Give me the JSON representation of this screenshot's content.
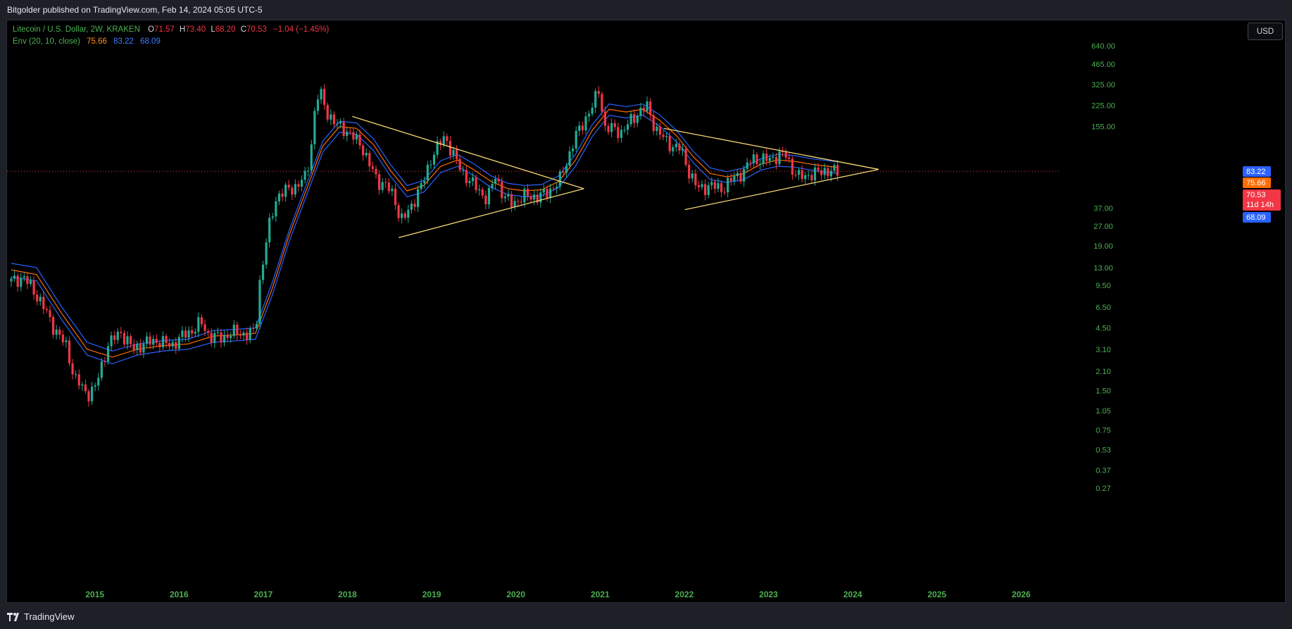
{
  "header": {
    "published": "Bitgolder published on TradingView.com, Feb 14, 2024 05:05 UTC-5"
  },
  "footer": {
    "brand": "TradingView"
  },
  "currency_button": "USD",
  "legend": {
    "symbol": "Litecoin / U.S. Dollar, 2W, KRAKEN",
    "open_label": "O",
    "open": "71.57",
    "high_label": "H",
    "high": "73.40",
    "low_label": "L",
    "low": "68.20",
    "close_label": "C",
    "close": "70.53",
    "change": "−1.04 (−1.45%)",
    "indicator": "Env (20, 10, close)",
    "ind_basis": "75.66",
    "ind_upper": "83.22",
    "ind_lower": "68.09"
  },
  "colors": {
    "up": "#22ab94",
    "down": "#f23645",
    "upper_band": "#2962ff",
    "basis": "#ff6d00",
    "lower_band": "#2962ff",
    "trendline": "#f7d774",
    "price_line": "#f23645",
    "axis_text": "#4caf50"
  },
  "chart_data": {
    "type": "candlestick",
    "title": "Litecoin / U.S. Dollar, 2W, KRAKEN",
    "y_scale": "log",
    "y_ticks": [
      640.0,
      465.0,
      325.0,
      225.0,
      155.0,
      37.0,
      27.0,
      19.0,
      13.0,
      9.5,
      6.5,
      4.5,
      3.1,
      2.1,
      1.5,
      1.05,
      0.75,
      0.53,
      0.37,
      0.27
    ],
    "y_ticks_labels": [
      "640.00",
      "465.00",
      "325.00",
      "225.00",
      "155.00",
      "37.00",
      "27.00",
      "19.00",
      "13.00",
      "9.50",
      "6.50",
      "4.50",
      "3.10",
      "2.10",
      "1.50",
      "1.05",
      "0.75",
      "0.53",
      "0.37",
      "0.27"
    ],
    "x_ticks": [
      "2015",
      "2016",
      "2017",
      "2018",
      "2019",
      "2020",
      "2021",
      "2022",
      "2023",
      "2024",
      "2025",
      "2026"
    ],
    "x_tick_values": [
      2015,
      2016,
      2017,
      2018,
      2019,
      2020,
      2021,
      2022,
      2023,
      2024,
      2025,
      2026
    ],
    "price_badges": [
      {
        "label": "83.22",
        "value": 83.22,
        "color": "#2962ff"
      },
      {
        "label": "75.66",
        "value": 75.66,
        "color": "#ff6d00"
      },
      {
        "label": "70.53",
        "sub": "11d 14h",
        "value": 70.53,
        "color": "#f23645"
      },
      {
        "label": "68.09",
        "value": 68.09,
        "color": "#2962ff"
      }
    ],
    "current_price": 70.53,
    "close_path": [
      [
        2014.3,
        10.2
      ],
      [
        2014.45,
        11.0
      ],
      [
        2014.65,
        7.2
      ],
      [
        2014.8,
        4.6
      ],
      [
        2014.95,
        3.3
      ],
      [
        2015.05,
        1.9
      ],
      [
        2015.2,
        1.4
      ],
      [
        2015.3,
        1.6
      ],
      [
        2015.45,
        3.4
      ],
      [
        2015.6,
        4.2
      ],
      [
        2015.75,
        3.1
      ],
      [
        2015.9,
        3.5
      ],
      [
        2016.05,
        3.6
      ],
      [
        2016.2,
        3.3
      ],
      [
        2016.35,
        4.0
      ],
      [
        2016.45,
        4.3
      ],
      [
        2016.55,
        5.0
      ],
      [
        2016.65,
        3.9
      ],
      [
        2016.8,
        3.8
      ],
      [
        2016.95,
        4.2
      ],
      [
        2017.1,
        4.0
      ],
      [
        2017.2,
        4.3
      ],
      [
        2017.25,
        10.0
      ],
      [
        2017.35,
        25.0
      ],
      [
        2017.45,
        45.0
      ],
      [
        2017.55,
        50.0
      ],
      [
        2017.7,
        55.0
      ],
      [
        2017.8,
        65.0
      ],
      [
        2017.85,
        95.0
      ],
      [
        2017.92,
        250.0
      ],
      [
        2017.97,
        280.0
      ],
      [
        2018.05,
        200.0
      ],
      [
        2018.15,
        160.0
      ],
      [
        2018.25,
        150.0
      ],
      [
        2018.35,
        130.0
      ],
      [
        2018.45,
        115.0
      ],
      [
        2018.55,
        80.0
      ],
      [
        2018.65,
        60.0
      ],
      [
        2018.75,
        55.0
      ],
      [
        2018.85,
        45.0
      ],
      [
        2018.92,
        30.0
      ],
      [
        2019.0,
        33.0
      ],
      [
        2019.1,
        45.0
      ],
      [
        2019.2,
        60.0
      ],
      [
        2019.3,
        95.0
      ],
      [
        2019.45,
        130.0
      ],
      [
        2019.55,
        95.0
      ],
      [
        2019.65,
        70.0
      ],
      [
        2019.8,
        55.0
      ],
      [
        2019.95,
        43.0
      ],
      [
        2020.05,
        65.0
      ],
      [
        2020.15,
        45.0
      ],
      [
        2020.25,
        40.0
      ],
      [
        2020.4,
        46.0
      ],
      [
        2020.55,
        45.0
      ],
      [
        2020.65,
        48.0
      ],
      [
        2020.8,
        58.0
      ],
      [
        2020.9,
        85.0
      ],
      [
        2021.0,
        130.0
      ],
      [
        2021.1,
        170.0
      ],
      [
        2021.2,
        220.0
      ],
      [
        2021.28,
        300.0
      ],
      [
        2021.35,
        150.0
      ],
      [
        2021.45,
        150.0
      ],
      [
        2021.55,
        140.0
      ],
      [
        2021.65,
        170.0
      ],
      [
        2021.75,
        200.0
      ],
      [
        2021.85,
        220.0
      ],
      [
        2021.95,
        150.0
      ],
      [
        2022.05,
        125.0
      ],
      [
        2022.15,
        110.0
      ],
      [
        2022.25,
        105.0
      ],
      [
        2022.35,
        70.0
      ],
      [
        2022.45,
        52.0
      ],
      [
        2022.6,
        55.0
      ],
      [
        2022.75,
        52.0
      ],
      [
        2022.9,
        65.0
      ],
      [
        2023.0,
        70.0
      ],
      [
        2023.1,
        90.0
      ],
      [
        2023.2,
        85.0
      ],
      [
        2023.3,
        88.0
      ],
      [
        2023.4,
        92.0
      ],
      [
        2023.5,
        95.0
      ],
      [
        2023.58,
        72.0
      ],
      [
        2023.65,
        64.0
      ],
      [
        2023.75,
        66.0
      ],
      [
        2023.85,
        68.0
      ],
      [
        2023.95,
        72.0
      ],
      [
        2024.05,
        70.0
      ],
      [
        2024.12,
        70.53
      ]
    ],
    "series": [
      {
        "name": "Env upper",
        "values": [
          [
            2014.3,
            14
          ],
          [
            2014.6,
            13
          ],
          [
            2014.9,
            6.5
          ],
          [
            2015.2,
            3.5
          ],
          [
            2015.5,
            3.0
          ],
          [
            2015.8,
            3.4
          ],
          [
            2016.1,
            3.6
          ],
          [
            2016.4,
            3.7
          ],
          [
            2016.7,
            4.3
          ],
          [
            2017.0,
            4.4
          ],
          [
            2017.2,
            4.5
          ],
          [
            2017.4,
            10
          ],
          [
            2017.6,
            25
          ],
          [
            2017.8,
            55
          ],
          [
            2018.0,
            120
          ],
          [
            2018.2,
            170
          ],
          [
            2018.4,
            165
          ],
          [
            2018.6,
            125
          ],
          [
            2018.8,
            80
          ],
          [
            2019.0,
            55
          ],
          [
            2019.2,
            60
          ],
          [
            2019.4,
            85
          ],
          [
            2019.6,
            95
          ],
          [
            2019.8,
            80
          ],
          [
            2020.0,
            65
          ],
          [
            2020.2,
            57
          ],
          [
            2020.4,
            55
          ],
          [
            2020.6,
            56
          ],
          [
            2020.8,
            65
          ],
          [
            2021.0,
            95
          ],
          [
            2021.2,
            160
          ],
          [
            2021.4,
            230
          ],
          [
            2021.6,
            220
          ],
          [
            2021.8,
            230
          ],
          [
            2022.0,
            190
          ],
          [
            2022.2,
            145
          ],
          [
            2022.4,
            100
          ],
          [
            2022.6,
            75
          ],
          [
            2022.8,
            70
          ],
          [
            2023.0,
            75
          ],
          [
            2023.2,
            88
          ],
          [
            2023.4,
            95
          ],
          [
            2023.6,
            93
          ],
          [
            2023.8,
            88
          ],
          [
            2024.0,
            85
          ],
          [
            2024.12,
            83.22
          ]
        ]
      },
      {
        "name": "Env basis",
        "values": [
          [
            2014.3,
            12.5
          ],
          [
            2014.6,
            11.5
          ],
          [
            2014.9,
            5.8
          ],
          [
            2015.2,
            3.1
          ],
          [
            2015.5,
            2.7
          ],
          [
            2015.8,
            3.1
          ],
          [
            2016.1,
            3.3
          ],
          [
            2016.4,
            3.4
          ],
          [
            2016.7,
            3.9
          ],
          [
            2017.0,
            4.0
          ],
          [
            2017.2,
            4.1
          ],
          [
            2017.4,
            9
          ],
          [
            2017.6,
            23
          ],
          [
            2017.8,
            50
          ],
          [
            2018.0,
            110
          ],
          [
            2018.2,
            155
          ],
          [
            2018.4,
            150
          ],
          [
            2018.6,
            113
          ],
          [
            2018.8,
            72
          ],
          [
            2019.0,
            50
          ],
          [
            2019.2,
            55
          ],
          [
            2019.4,
            77
          ],
          [
            2019.6,
            86
          ],
          [
            2019.8,
            72
          ],
          [
            2020.0,
            59
          ],
          [
            2020.2,
            52
          ],
          [
            2020.4,
            50
          ],
          [
            2020.6,
            51
          ],
          [
            2020.8,
            59
          ],
          [
            2021.0,
            86
          ],
          [
            2021.2,
            145
          ],
          [
            2021.4,
            210
          ],
          [
            2021.6,
            200
          ],
          [
            2021.8,
            210
          ],
          [
            2022.0,
            173
          ],
          [
            2022.2,
            132
          ],
          [
            2022.4,
            91
          ],
          [
            2022.6,
            68
          ],
          [
            2022.8,
            64
          ],
          [
            2023.0,
            68
          ],
          [
            2023.2,
            80
          ],
          [
            2023.4,
            86
          ],
          [
            2023.6,
            84
          ],
          [
            2023.8,
            80
          ],
          [
            2024.0,
            77
          ],
          [
            2024.12,
            75.66
          ]
        ]
      },
      {
        "name": "Env lower",
        "values": [
          [
            2014.3,
            11
          ],
          [
            2014.6,
            10.3
          ],
          [
            2014.9,
            5.2
          ],
          [
            2015.2,
            2.8
          ],
          [
            2015.5,
            2.4
          ],
          [
            2015.8,
            2.8
          ],
          [
            2016.1,
            3.0
          ],
          [
            2016.4,
            3.1
          ],
          [
            2016.7,
            3.5
          ],
          [
            2017.0,
            3.6
          ],
          [
            2017.2,
            3.7
          ],
          [
            2017.4,
            8
          ],
          [
            2017.6,
            20.5
          ],
          [
            2017.8,
            45
          ],
          [
            2018.0,
            99
          ],
          [
            2018.2,
            140
          ],
          [
            2018.4,
            135
          ],
          [
            2018.6,
            102
          ],
          [
            2018.8,
            65
          ],
          [
            2019.0,
            45
          ],
          [
            2019.2,
            49
          ],
          [
            2019.4,
            69
          ],
          [
            2019.6,
            77
          ],
          [
            2019.8,
            65
          ],
          [
            2020.0,
            53
          ],
          [
            2020.2,
            47
          ],
          [
            2020.4,
            45
          ],
          [
            2020.6,
            46
          ],
          [
            2020.8,
            53
          ],
          [
            2021.0,
            77
          ],
          [
            2021.2,
            130
          ],
          [
            2021.4,
            189
          ],
          [
            2021.6,
            180
          ],
          [
            2021.8,
            189
          ],
          [
            2022.0,
            156
          ],
          [
            2022.2,
            119
          ],
          [
            2022.4,
            82
          ],
          [
            2022.6,
            61
          ],
          [
            2022.8,
            58
          ],
          [
            2023.0,
            61
          ],
          [
            2023.2,
            72
          ],
          [
            2023.4,
            77
          ],
          [
            2023.6,
            76
          ],
          [
            2023.8,
            72
          ],
          [
            2024.0,
            69
          ],
          [
            2024.12,
            68.09
          ]
        ]
      }
    ],
    "trendlines": [
      {
        "from": [
          2018.35,
          185
        ],
        "to": [
          2021.1,
          52
        ]
      },
      {
        "from": [
          2018.9,
          22
        ],
        "to": [
          2021.1,
          52
        ]
      },
      {
        "from": [
          2022.05,
          150
        ],
        "to": [
          2024.6,
          73
        ]
      },
      {
        "from": [
          2022.3,
          36
        ],
        "to": [
          2024.6,
          73
        ]
      }
    ],
    "x_range": [
      2014.25,
      2026.75
    ],
    "y_range": [
      0.23,
      820
    ]
  }
}
